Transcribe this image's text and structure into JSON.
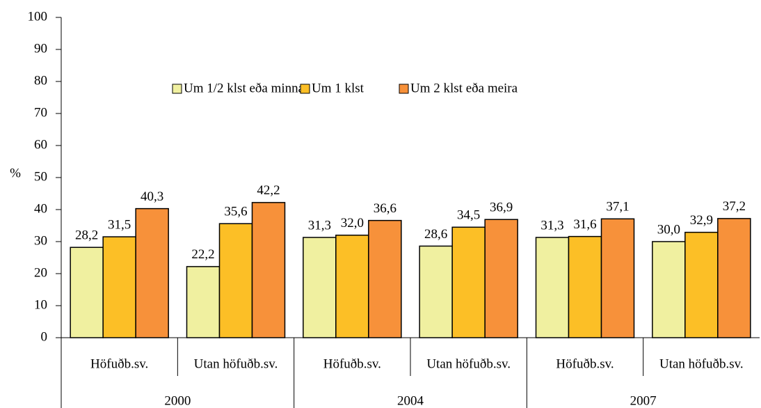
{
  "chart_data": {
    "type": "bar",
    "y_label": "%",
    "categories": [
      "Höfuðb.sv.",
      "Utan höfuðb.sv.",
      "Höfuðb.sv.",
      "Utan höfuðb.sv.",
      "Höfuðb.sv.",
      "Utan höfuðb.sv."
    ],
    "category_groups": [
      "2000",
      "2004",
      "2007"
    ],
    "series": [
      {
        "name": "Um 1/2 klst eða minna",
        "color": "#f0f0a0",
        "values": [
          28.2,
          22.2,
          31.3,
          28.6,
          31.3,
          30.0
        ],
        "value_labels": [
          "28,2",
          "22,2",
          "31,3",
          "28,6",
          "31,3",
          "30,0"
        ]
      },
      {
        "name": "Um 1 klst",
        "color": "#fcbf26",
        "values": [
          31.5,
          35.6,
          32.0,
          34.5,
          31.6,
          32.9
        ],
        "value_labels": [
          "31,5",
          "35,6",
          "32,0",
          "34,5",
          "31,6",
          "32,9"
        ]
      },
      {
        "name": "Um 2 klst eða meira",
        "color": "#f7913a",
        "values": [
          40.3,
          42.2,
          36.6,
          36.9,
          37.1,
          37.2
        ],
        "value_labels": [
          "40,3",
          "42,2",
          "36,6",
          "36,9",
          "37,1",
          "37,2"
        ]
      }
    ],
    "ylim": [
      0,
      100
    ],
    "yticks": [
      0,
      10,
      20,
      30,
      40,
      50,
      60,
      70,
      80,
      90,
      100
    ],
    "legend": "top"
  }
}
